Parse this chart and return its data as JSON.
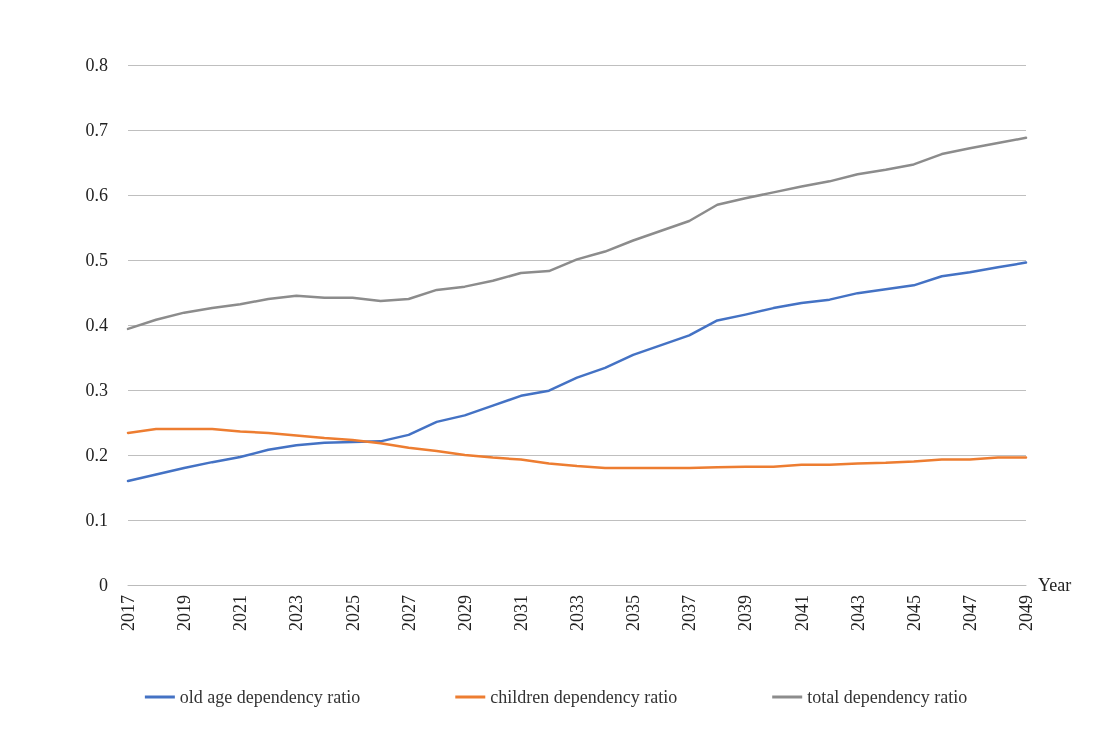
{
  "chart_data": {
    "type": "line",
    "xlabel": "Year",
    "categories": [
      "2017",
      null,
      "2019",
      null,
      "2021",
      null,
      "2023",
      null,
      "2025",
      null,
      "2027",
      null,
      "2029",
      null,
      "2031",
      null,
      "2033",
      null,
      "2035",
      null,
      "2037",
      null,
      "2039",
      null,
      "2041",
      null,
      "2043",
      null,
      "2045",
      null,
      "2047",
      null,
      "2049"
    ],
    "series": [
      {
        "name": "old age dependency ratio",
        "color": "#4472c4",
        "values": [
          0.16,
          0.17,
          0.18,
          0.189,
          0.197,
          0.208,
          0.215,
          0.219,
          0.22,
          0.221,
          0.231,
          0.251,
          0.261,
          0.276,
          0.291,
          0.299,
          0.319,
          0.334,
          0.354,
          0.369,
          0.384,
          0.407,
          0.416,
          0.426,
          0.434,
          0.439,
          0.449,
          0.455,
          0.461,
          0.475,
          0.481,
          0.489,
          0.496
        ]
      },
      {
        "name": "children dependency ratio",
        "color": "#ed7d31",
        "values": [
          0.234,
          0.24,
          0.24,
          0.24,
          0.236,
          0.234,
          0.23,
          0.226,
          0.223,
          0.218,
          0.211,
          0.206,
          0.2,
          0.196,
          0.193,
          0.187,
          0.183,
          0.18,
          0.18,
          0.18,
          0.18,
          0.181,
          0.182,
          0.182,
          0.185,
          0.185,
          0.187,
          0.188,
          0.19,
          0.193,
          0.193,
          0.196,
          0.196
        ]
      },
      {
        "name": "total dependency ratio",
        "color": "#8c8c8c",
        "values": [
          0.394,
          0.408,
          0.419,
          0.426,
          0.432,
          0.44,
          0.445,
          0.442,
          0.442,
          0.437,
          0.44,
          0.454,
          0.459,
          0.468,
          0.48,
          0.483,
          0.501,
          0.513,
          0.53,
          0.545,
          0.56,
          0.585,
          0.595,
          0.604,
          0.613,
          0.621,
          0.632,
          0.639,
          0.647,
          0.663,
          0.672,
          0.68,
          0.688
        ]
      }
    ],
    "ylim": [
      0,
      0.8
    ],
    "yticks": [
      0,
      0.1,
      0.2,
      0.3,
      0.4,
      0.5,
      0.6,
      0.7,
      0.8
    ],
    "grid": "y",
    "legend": "bottom",
    "marker": "none",
    "line_style": "solid"
  }
}
